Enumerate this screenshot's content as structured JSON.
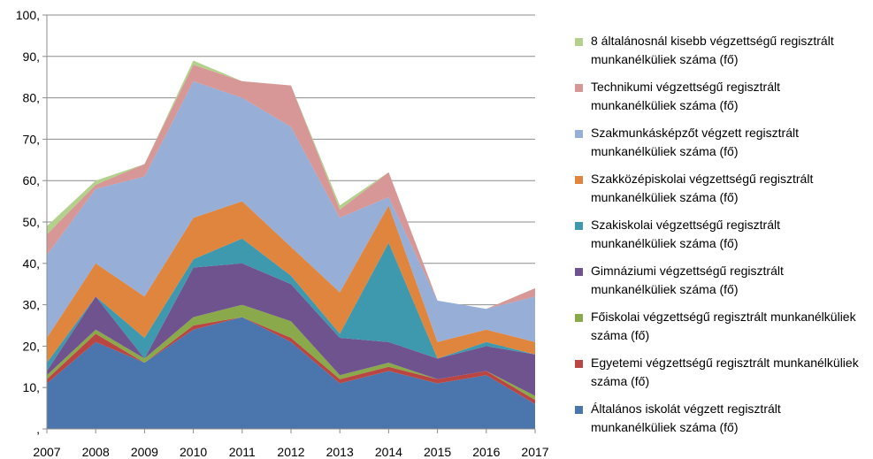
{
  "chart_data": {
    "type": "area",
    "stacked": true,
    "x": [
      "2007",
      "2008",
      "2009",
      "2010",
      "2011",
      "2012",
      "2013",
      "2014",
      "2015",
      "2016",
      "2017"
    ],
    "ylim": [
      0,
      100
    ],
    "yticks": [
      ",",
      "10,",
      "20,",
      "30,",
      "40,",
      "50,",
      "60,",
      "70,",
      "80,",
      "90,",
      "100,"
    ],
    "grid": "horizontal",
    "legend_position": "right",
    "series": [
      {
        "name": "Általános iskolát végzett regisztrált munkanélküliek száma  (fő)",
        "color": "#4a75ad",
        "values": [
          11,
          21,
          16,
          24,
          27,
          21,
          11,
          14,
          11,
          13,
          6
        ]
      },
      {
        "name": "Egyetemi végzettségű regisztrált munkanélküliek száma (fő)",
        "color": "#b94642",
        "values": [
          1,
          2,
          0,
          1,
          0,
          1,
          1,
          1,
          1,
          1,
          1
        ]
      },
      {
        "name": "Főiskolai végzettségű regisztrált munkanélküliek száma (fő)",
        "color": "#8aa94a",
        "values": [
          1,
          1,
          1,
          2,
          3,
          4,
          1,
          1,
          0,
          0,
          1
        ]
      },
      {
        "name": "Gimnáziumi végzettségű regisztrált munkanélküliek száma  (fő)",
        "color": "#6f538f",
        "values": [
          1,
          8,
          0,
          12,
          10,
          9,
          9,
          5,
          5,
          6,
          10
        ]
      },
      {
        "name": "Szakiskolai végzettségű regisztrált munkanélküliek száma (fő)",
        "color": "#3e98ae",
        "values": [
          2,
          0,
          5,
          2,
          6,
          2,
          1,
          24,
          0,
          1,
          0
        ]
      },
      {
        "name": "Szakközépiskolai végzettségű regisztrált munkanélküliek száma  (fő)",
        "color": "#e0853e",
        "values": [
          6,
          8,
          10,
          10,
          9,
          7,
          10,
          9,
          4,
          3,
          3
        ]
      },
      {
        "name": "Szakmunkásképzőt végzett regisztrált munkanélküliek száma (fő)",
        "color": "#97aed6",
        "values": [
          20,
          18,
          29,
          33,
          25,
          29,
          18,
          2,
          10,
          5,
          11
        ]
      },
      {
        "name": "Technikumi végzettségű regisztrált munkanélküliek száma (fő)",
        "color": "#d69796",
        "values": [
          5,
          1,
          3,
          4,
          4,
          10,
          2,
          6,
          0,
          0,
          2
        ]
      },
      {
        "name": "8 általánosnál kisebb végzettségű regisztrált munkanélküliek száma (fő)",
        "color": "#b3d08c",
        "values": [
          2,
          1,
          0,
          1,
          0,
          0,
          1,
          0,
          0,
          0,
          0
        ]
      }
    ]
  }
}
